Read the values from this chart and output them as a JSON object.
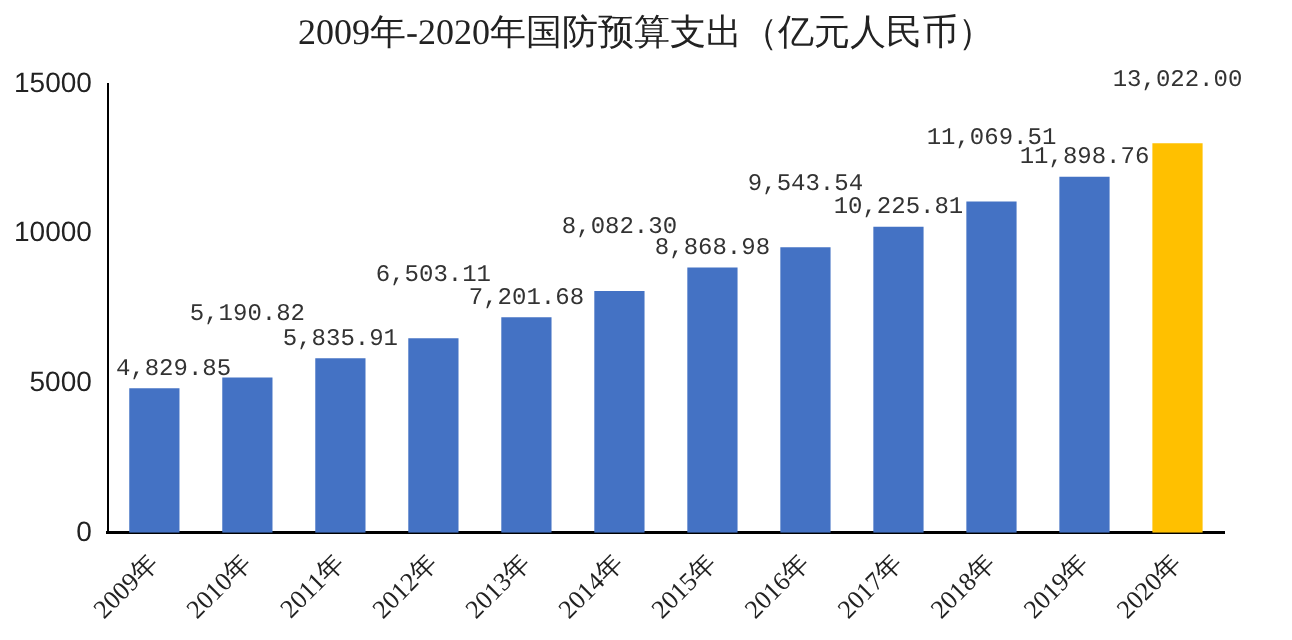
{
  "chart_data": {
    "type": "bar",
    "title": "2009年-2020年国防预算支出（亿元人民币）",
    "categories": [
      "2009年",
      "2010年",
      "2011年",
      "2012年",
      "2013年",
      "2014年",
      "2015年",
      "2016年",
      "2017年",
      "2018年",
      "2019年",
      "2020年"
    ],
    "values": [
      4829.85,
      5190.82,
      5835.91,
      6503.11,
      7201.68,
      8082.3,
      8868.98,
      9543.54,
      10225.81,
      11069.51,
      11898.76,
      13022.0
    ],
    "colors": [
      "#4472c4",
      "#4472c4",
      "#4472c4",
      "#4472c4",
      "#4472c4",
      "#4472c4",
      "#4472c4",
      "#4472c4",
      "#4472c4",
      "#4472c4",
      "#4472c4",
      "#ffc000"
    ],
    "value_labels": [
      "4,829.85",
      "5,190.82",
      "5,835.91",
      "6,503.11",
      "7,201.68",
      "8,082.30",
      "8,868.98",
      "9,543.54",
      "10,225.81",
      "11,069.51",
      "11,898.76",
      "13,022.00"
    ],
    "ylim": [
      0,
      15000
    ],
    "yticks": [
      0,
      5000,
      10000,
      15000
    ],
    "grid": false,
    "legend": false
  }
}
